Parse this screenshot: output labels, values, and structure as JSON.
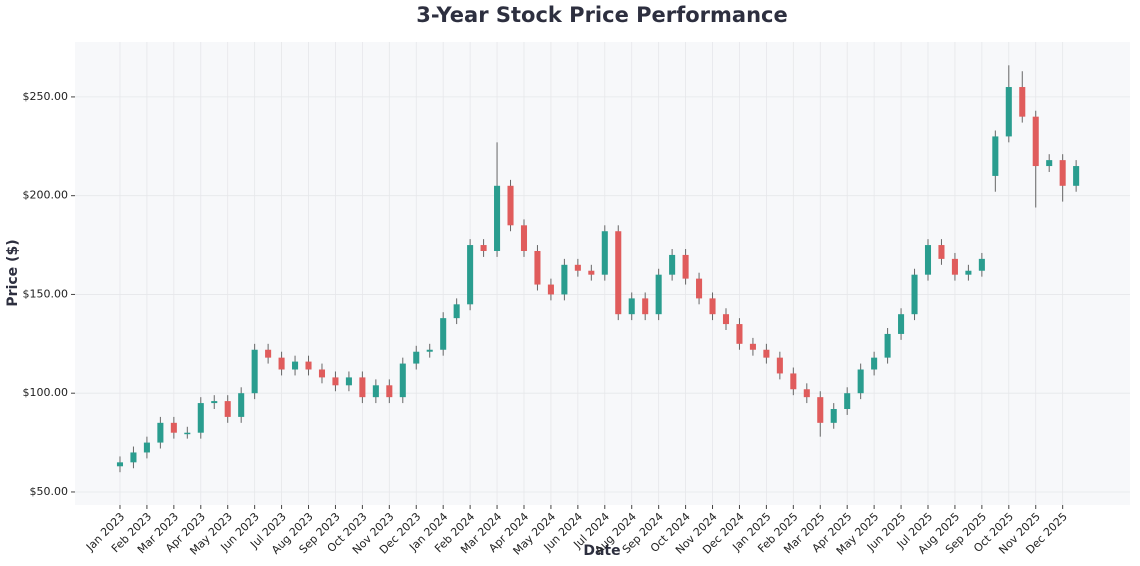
{
  "chart_data": {
    "type": "candlestick",
    "title": "3-Year Stock Price Performance",
    "x_label": "Date",
    "y_label": "Price ($)",
    "up_color": "#2a9d8f",
    "down_color": "#e05c5c",
    "grid": true,
    "x": [
      0,
      0.5,
      1,
      1.5,
      2,
      2.5,
      3,
      3.5,
      4,
      4.5,
      5,
      5.5,
      6,
      6.5,
      7,
      7.5,
      8,
      8.5,
      9,
      9.5,
      10,
      10.5,
      11,
      11.5,
      12,
      12.5,
      13,
      13.5,
      14,
      14.5,
      15,
      15.5,
      16,
      16.5,
      17,
      17.5,
      18,
      18.5,
      19,
      19.5,
      20,
      20.5,
      21,
      21.5,
      22,
      22.5,
      23,
      23.5,
      24,
      24.5,
      25,
      25.5,
      26,
      26.5,
      27,
      27.5,
      28,
      28.5,
      29,
      29.5,
      30,
      30.5,
      31,
      31.5,
      32,
      32.5,
      33,
      33.5,
      34,
      34.5,
      35,
      35.5
    ],
    "open": [
      63,
      65,
      70,
      75,
      85,
      80,
      80,
      95,
      96,
      88,
      100,
      122,
      118,
      112,
      116,
      112,
      108,
      104,
      108,
      98,
      104,
      98,
      115,
      121,
      122,
      138,
      145,
      175,
      172,
      205,
      185,
      172,
      155,
      150,
      165,
      162,
      160,
      182,
      140,
      148,
      140,
      160,
      170,
      158,
      148,
      140,
      135,
      125,
      122,
      118,
      110,
      102,
      98,
      85,
      92,
      100,
      112,
      118,
      130,
      140,
      160,
      175,
      168,
      160,
      162,
      210,
      230,
      255,
      240,
      215,
      218,
      205
    ],
    "high": [
      68,
      73,
      78,
      88,
      88,
      83,
      98,
      99,
      99,
      103,
      125,
      125,
      121,
      119,
      119,
      115,
      111,
      111,
      111,
      107,
      107,
      118,
      124,
      125,
      141,
      148,
      178,
      178,
      227,
      208,
      188,
      175,
      158,
      168,
      168,
      165,
      185,
      185,
      151,
      151,
      163,
      173,
      173,
      161,
      151,
      143,
      138,
      128,
      125,
      121,
      113,
      105,
      101,
      95,
      103,
      115,
      121,
      133,
      143,
      163,
      178,
      178,
      171,
      165,
      171,
      233,
      266,
      263,
      243,
      221,
      221,
      218
    ],
    "low": [
      60,
      62,
      67,
      72,
      77,
      77,
      77,
      92,
      85,
      85,
      97,
      115,
      109,
      109,
      109,
      105,
      101,
      101,
      95,
      95,
      95,
      95,
      112,
      118,
      119,
      135,
      142,
      169,
      169,
      182,
      169,
      152,
      147,
      147,
      159,
      157,
      157,
      137,
      137,
      137,
      137,
      157,
      155,
      145,
      137,
      132,
      122,
      119,
      115,
      107,
      99,
      95,
      78,
      82,
      89,
      97,
      109,
      115,
      127,
      137,
      157,
      165,
      157,
      157,
      159,
      202,
      227,
      237,
      194,
      212,
      197,
      202
    ],
    "close": [
      65,
      70,
      75,
      85,
      80,
      80,
      95,
      96,
      88,
      100,
      122,
      118,
      112,
      116,
      112,
      108,
      104,
      108,
      98,
      104,
      98,
      115,
      121,
      122,
      138,
      145,
      175,
      172,
      205,
      185,
      172,
      155,
      150,
      165,
      162,
      160,
      182,
      140,
      148,
      140,
      160,
      170,
      158,
      148,
      140,
      135,
      125,
      122,
      118,
      110,
      102,
      98,
      85,
      92,
      100,
      112,
      118,
      130,
      140,
      160,
      175,
      168,
      160,
      162,
      168,
      230,
      255,
      240,
      215,
      218,
      205,
      215
    ],
    "xlim": [
      -1.67,
      37.5
    ],
    "xticks": [
      {
        "value": 0,
        "label": "Jan 2023"
      },
      {
        "value": 1,
        "label": "Feb 2023"
      },
      {
        "value": 2,
        "label": "Mar 2023"
      },
      {
        "value": 3,
        "label": "Apr 2023"
      },
      {
        "value": 4,
        "label": "May 2023"
      },
      {
        "value": 5,
        "label": "Jun 2023"
      },
      {
        "value": 6,
        "label": "Jul 2023"
      },
      {
        "value": 7,
        "label": "Aug 2023"
      },
      {
        "value": 8,
        "label": "Sep 2023"
      },
      {
        "value": 9,
        "label": "Oct 2023"
      },
      {
        "value": 10,
        "label": "Nov 2023"
      },
      {
        "value": 11,
        "label": "Dec 2023"
      },
      {
        "value": 12,
        "label": "Jan 2024"
      },
      {
        "value": 13,
        "label": "Feb 2024"
      },
      {
        "value": 14,
        "label": "Mar 2024"
      },
      {
        "value": 15,
        "label": "Apr 2024"
      },
      {
        "value": 16,
        "label": "May 2024"
      },
      {
        "value": 17,
        "label": "Jun 2024"
      },
      {
        "value": 18,
        "label": "Jul 2024"
      },
      {
        "value": 19,
        "label": "Aug 2024"
      },
      {
        "value": 20,
        "label": "Sep 2024"
      },
      {
        "value": 21,
        "label": "Oct 2024"
      },
      {
        "value": 22,
        "label": "Nov 2024"
      },
      {
        "value": 23,
        "label": "Dec 2024"
      },
      {
        "value": 24,
        "label": "Jan 2025"
      },
      {
        "value": 25,
        "label": "Feb 2025"
      },
      {
        "value": 26,
        "label": "Mar 2025"
      },
      {
        "value": 27,
        "label": "Apr 2025"
      },
      {
        "value": 28,
        "label": "May 2025"
      },
      {
        "value": 29,
        "label": "Jun 2025"
      },
      {
        "value": 30,
        "label": "Jul 2025"
      },
      {
        "value": 31,
        "label": "Aug 2025"
      },
      {
        "value": 32,
        "label": "Sep 2025"
      },
      {
        "value": 33,
        "label": "Oct 2025"
      },
      {
        "value": 34,
        "label": "Nov 2025"
      },
      {
        "value": 35,
        "label": "Dec 2025"
      }
    ],
    "ylim": [
      43.4,
      277.8
    ],
    "yticks": [
      {
        "value": 50,
        "label": "$50.00"
      },
      {
        "value": 100,
        "label": "$100.00"
      },
      {
        "value": 150,
        "label": "$150.00"
      },
      {
        "value": 200,
        "label": "$200.00"
      },
      {
        "value": 250,
        "label": "$250.00"
      }
    ]
  }
}
